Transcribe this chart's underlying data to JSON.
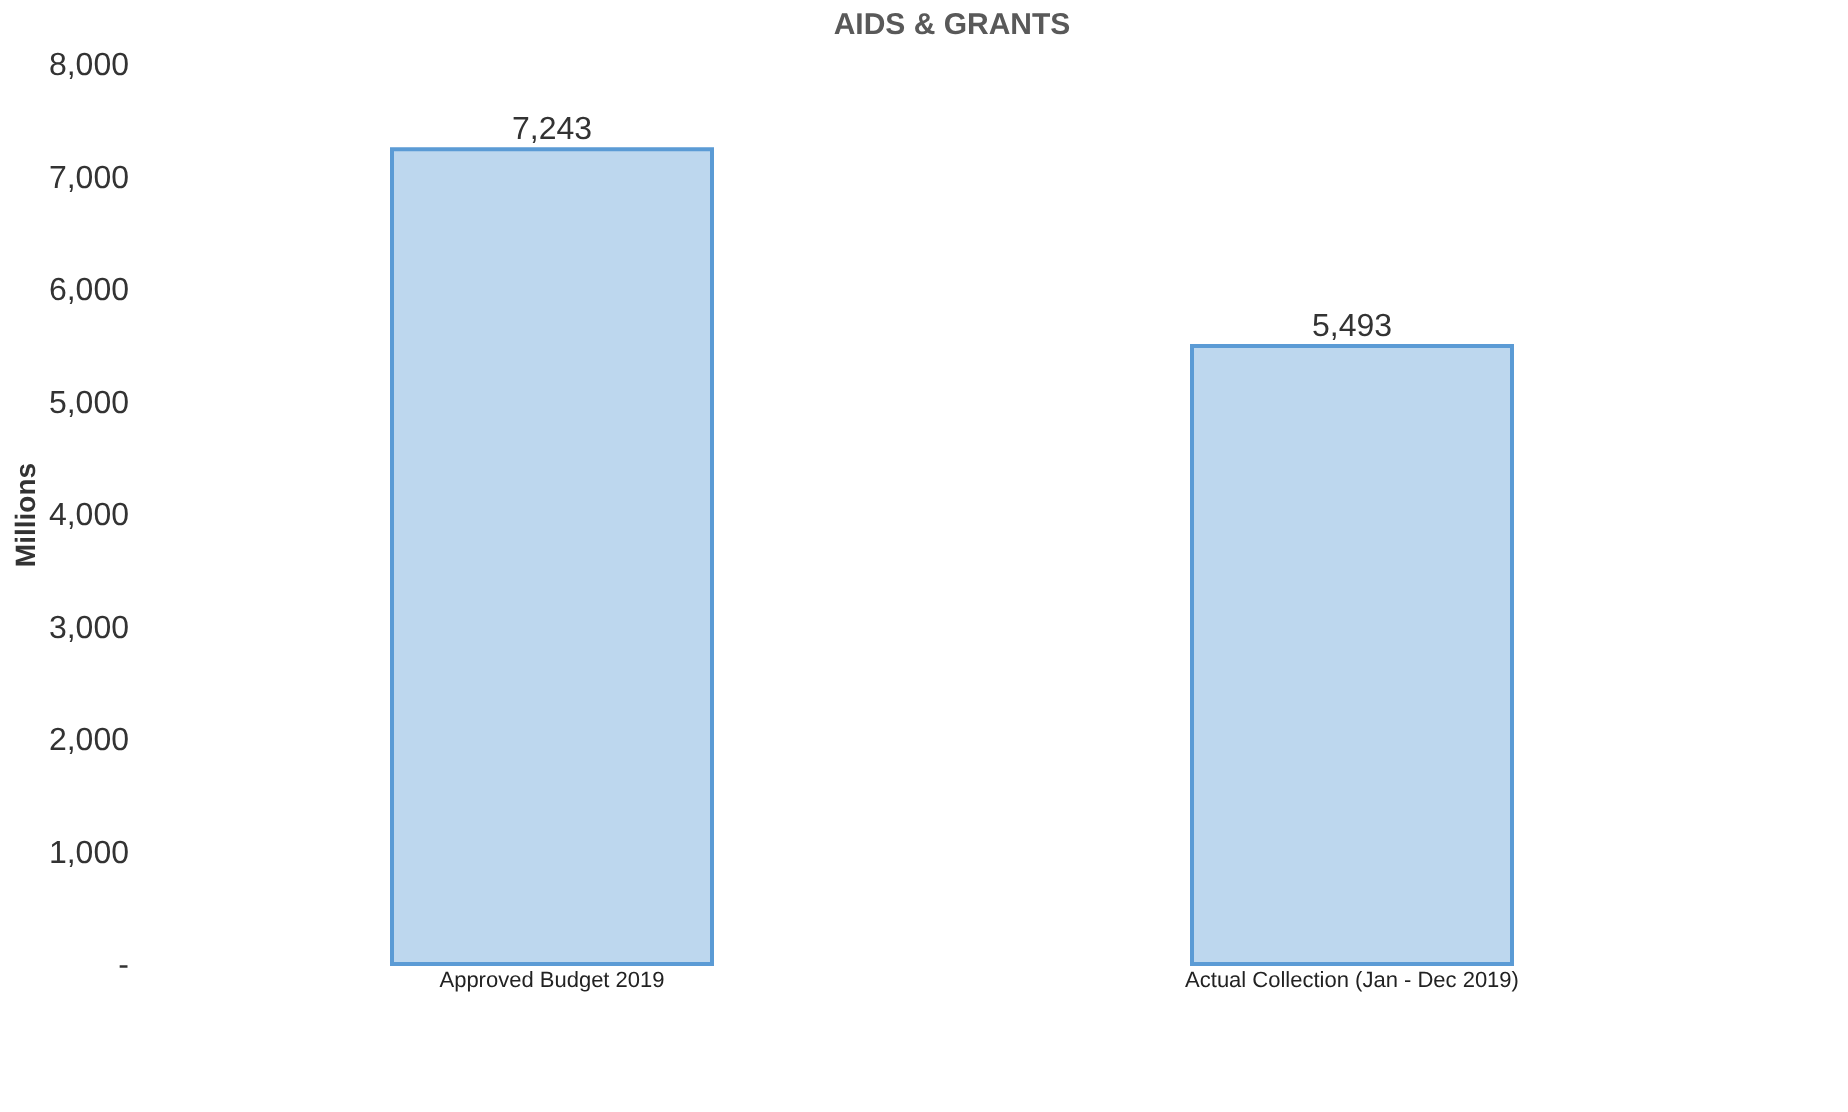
{
  "chart_data": {
    "type": "bar",
    "title": "AIDS & GRANTS",
    "ylabel": "Millions",
    "categories": [
      "Approved Budget 2019",
      "Actual Collection      (Jan - Dec 2019)"
    ],
    "values": [
      7243,
      5493
    ],
    "color": "#bdd7ee",
    "value_labels": [
      "7,243",
      "5,493"
    ],
    "ylim": [
      0,
      8000
    ],
    "yticks": [
      {
        "value": 0,
        "label": "-"
      },
      {
        "value": 1000,
        "label": "1,000"
      },
      {
        "value": 2000,
        "label": "2,000"
      },
      {
        "value": 3000,
        "label": "3,000"
      },
      {
        "value": 4000,
        "label": "4,000"
      },
      {
        "value": 5000,
        "label": "5,000"
      },
      {
        "value": 6000,
        "label": "6,000"
      },
      {
        "value": 7000,
        "label": "7,000"
      },
      {
        "value": 8000,
        "label": "8,000"
      }
    ],
    "grid": false
  }
}
